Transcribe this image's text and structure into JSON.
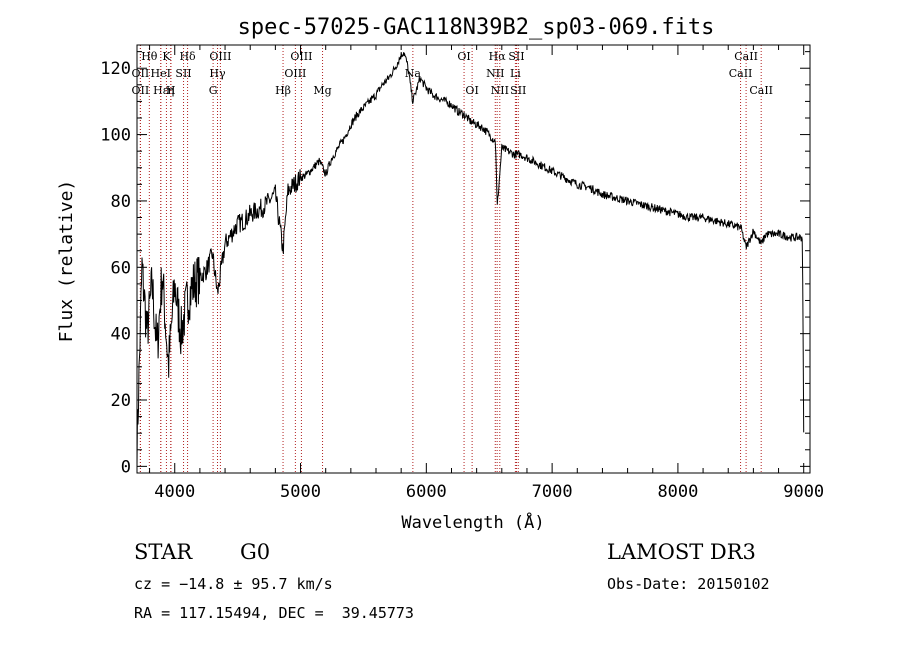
{
  "chart_data": {
    "type": "line",
    "title": "spec-57025-GAC118N39B2_sp03-069.fits",
    "xlabel": "Wavelength (Å)",
    "ylabel": "Flux (relative)",
    "xlim": [
      3700,
      9050
    ],
    "ylim": [
      -2,
      127
    ],
    "xticks": [
      4000,
      5000,
      6000,
      7000,
      8000,
      9000
    ],
    "yticks": [
      0,
      20,
      40,
      60,
      80,
      100,
      120
    ],
    "xtick_labels": [
      "4000",
      "5000",
      "6000",
      "7000",
      "8000",
      "9000"
    ],
    "ytick_labels": [
      "0",
      "20",
      "40",
      "60",
      "80",
      "100",
      "120"
    ],
    "series": [
      {
        "name": "flux",
        "x": [
          3700,
          3740,
          3780,
          3820,
          3860,
          3900,
          3950,
          4000,
          4050,
          4100,
          4150,
          4200,
          4250,
          4300,
          4340,
          4400,
          4450,
          4500,
          4550,
          4600,
          4650,
          4700,
          4750,
          4800,
          4861,
          4900,
          4950,
          5000,
          5050,
          5100,
          5150,
          5200,
          5250,
          5300,
          5350,
          5400,
          5450,
          5500,
          5550,
          5600,
          5650,
          5700,
          5750,
          5800,
          5820,
          5850,
          5893,
          5950,
          6000,
          6050,
          6100,
          6150,
          6200,
          6250,
          6300,
          6350,
          6400,
          6450,
          6500,
          6550,
          6563,
          6600,
          6650,
          6700,
          6750,
          6800,
          6900,
          7000,
          7100,
          7200,
          7300,
          7400,
          7500,
          7600,
          7700,
          7800,
          7900,
          8000,
          8100,
          8200,
          8300,
          8400,
          8500,
          8542,
          8600,
          8662,
          8700,
          8800,
          8900,
          8990,
          9000
        ],
        "y": [
          5,
          60,
          40,
          55,
          35,
          58,
          30,
          55,
          40,
          50,
          55,
          57,
          59,
          64,
          52,
          67,
          70,
          73,
          74,
          76,
          77,
          78,
          80,
          82,
          65,
          83,
          85,
          87,
          88,
          90,
          92,
          88,
          93,
          96,
          99,
          103,
          106,
          108,
          110,
          112,
          115,
          117,
          120,
          124,
          125,
          121,
          110,
          117,
          114,
          112,
          111,
          110,
          109,
          107,
          106,
          104,
          103,
          102,
          100,
          98,
          78,
          96,
          95,
          94,
          94,
          93,
          91,
          89,
          87,
          85,
          84,
          82,
          81,
          80,
          79,
          78,
          77,
          76,
          75,
          75,
          74,
          73,
          72,
          66,
          71,
          67,
          70,
          70,
          69,
          69,
          10
        ]
      }
    ],
    "lines": [
      {
        "label": "Hθ",
        "x": 3798,
        "row": 0
      },
      {
        "label": "OII",
        "x": 3727,
        "row": 1
      },
      {
        "label": "OII",
        "x": 3727,
        "row": 2
      },
      {
        "label": "Hε",
        "x": 3889,
        "row": 2
      },
      {
        "label": "HeI",
        "x": 3889,
        "row": 1
      },
      {
        "label": "K",
        "x": 3934,
        "row": 0
      },
      {
        "label": "η",
        "x": 3970,
        "row": 2
      },
      {
        "label": "H",
        "x": 3968,
        "row": 2
      },
      {
        "label": "SII",
        "x": 4070,
        "row": 1
      },
      {
        "label": "Hδ",
        "x": 4102,
        "row": 0
      },
      {
        "label": "OIII",
        "x": 4363,
        "row": 0
      },
      {
        "label": "Hγ",
        "x": 4340,
        "row": 1
      },
      {
        "label": "G",
        "x": 4305,
        "row": 2
      },
      {
        "label": "Hβ",
        "x": 4861,
        "row": 2
      },
      {
        "label": "OIII",
        "x": 4959,
        "row": 1
      },
      {
        "label": "OIII",
        "x": 5007,
        "row": 0
      },
      {
        "label": "Mg",
        "x": 5175,
        "row": 2
      },
      {
        "label": "Na",
        "x": 5893,
        "row": 1
      },
      {
        "label": "OI",
        "x": 6300,
        "row": 0
      },
      {
        "label": "OI",
        "x": 6364,
        "row": 2
      },
      {
        "label": "Hα",
        "x": 6563,
        "row": 0
      },
      {
        "label": "NII",
        "x": 6548,
        "row": 1
      },
      {
        "label": "NII",
        "x": 6584,
        "row": 2
      },
      {
        "label": "SII",
        "x": 6717,
        "row": 0
      },
      {
        "label": "Li",
        "x": 6708,
        "row": 1
      },
      {
        "label": "SII",
        "x": 6731,
        "row": 2
      },
      {
        "label": "CaII",
        "x": 8542,
        "row": 0
      },
      {
        "label": "CaII",
        "x": 8498,
        "row": 1
      },
      {
        "label": "CaII",
        "x": 8662,
        "row": 2
      }
    ]
  },
  "info": {
    "object_class": "STAR",
    "subclass": "G0",
    "cz": "cz = −14.8 ± 95.7 km/s",
    "radec": "RA = 117.15494, DEC =  39.45773",
    "survey": "LAMOST DR3",
    "obs_date": "Obs-Date: 20150102"
  },
  "colors": {
    "line_marker": "#b22222",
    "spectrum": "#000000"
  }
}
